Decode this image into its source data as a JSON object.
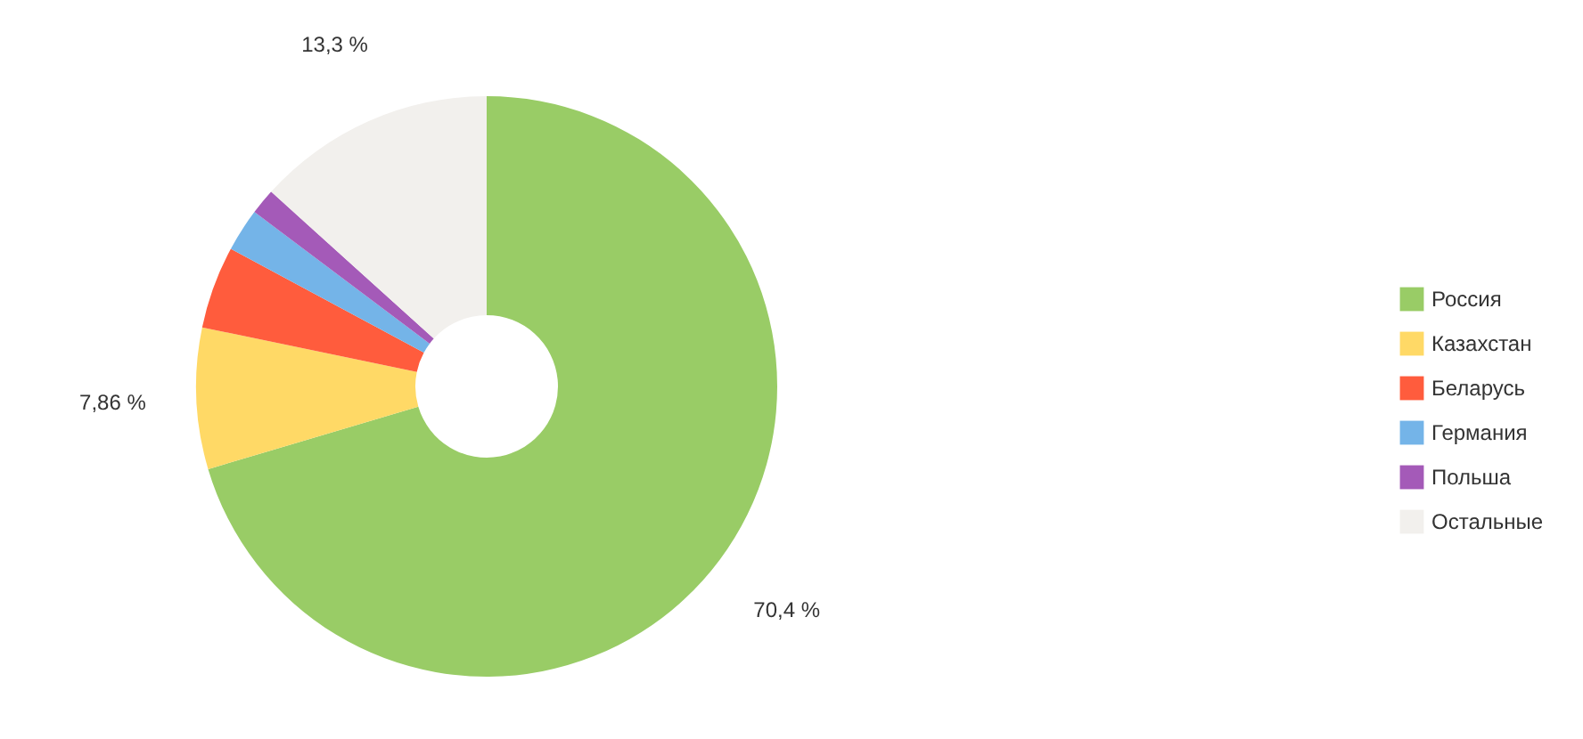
{
  "chart_data": {
    "type": "donut",
    "categories": [
      "Россия",
      "Казахстан",
      "Беларусь",
      "Германия",
      "Польша",
      "Остальные"
    ],
    "values": [
      70.4,
      7.86,
      4.6,
      2.4,
      1.44,
      13.3
    ],
    "colors": [
      "#99cc66",
      "#ffd966",
      "#ff5c3d",
      "#74b4e8",
      "#a45ab8",
      "#f2f0ed"
    ],
    "value_labels": [
      "70,4 %",
      "7,86 %",
      null,
      null,
      null,
      "13,3 %"
    ],
    "legend": "right"
  }
}
